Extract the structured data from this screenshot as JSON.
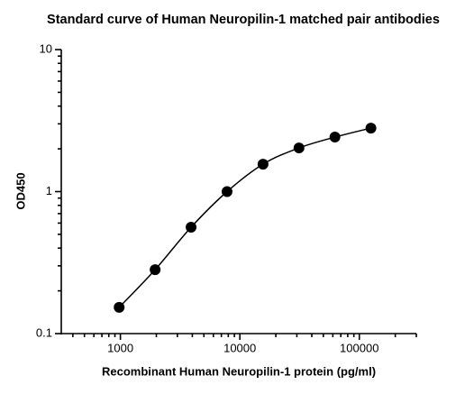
{
  "chart_data": {
    "type": "scatter",
    "title": "Standard curve of Human Neuropilin-1 matched pair antibodies",
    "x_label": "Recombinant Human Neuropilin-1 protein (pg/ml)",
    "y_label": "OD450",
    "x_scale": "log",
    "y_scale": "log",
    "x": [
      976.5,
      1953,
      3906,
      7812,
      15625,
      31250,
      62500,
      125000
    ],
    "series": [
      {
        "color": "#000000",
        "values": [
          0.153,
          0.282,
          0.561,
          1.0,
          1.56,
          2.03,
          2.42,
          2.8
        ]
      }
    ],
    "curve": true,
    "xlim": [
      320,
      300000
    ],
    "ylim": [
      0.1,
      10
    ],
    "xticks": [
      1000,
      10000,
      100000
    ],
    "yticks": [
      0.1,
      1,
      10
    ],
    "xminor": [
      400,
      500,
      600,
      700,
      800,
      900,
      2000,
      3000,
      4000,
      5000,
      6000,
      7000,
      8000,
      9000,
      20000,
      30000,
      40000,
      50000,
      60000,
      70000,
      80000,
      90000,
      200000,
      300000
    ],
    "yminor": [
      0.2,
      0.3,
      0.4,
      0.5,
      0.6,
      0.7,
      0.8,
      0.9,
      2,
      3,
      4,
      5,
      6,
      7,
      8,
      9
    ]
  }
}
